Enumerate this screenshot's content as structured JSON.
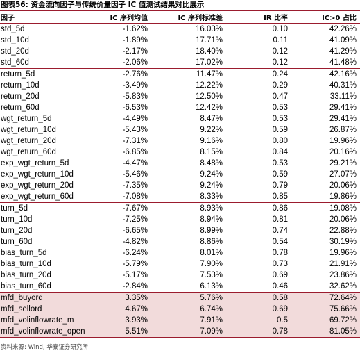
{
  "title": "图表56: 资金流向因子与传统价量因子 IC 值测试结果对比展示",
  "headers": [
    "因子",
    "IC 序列均值",
    "IC 序列标准差",
    "IR 比率",
    "IC>0 占比"
  ],
  "groups": [
    {
      "rows": [
        [
          "std_5d",
          "-1.62%",
          "16.03%",
          "0.10",
          "42.26%"
        ],
        [
          "std_10d",
          "-1.89%",
          "17.71%",
          "0.11",
          "41.09%"
        ],
        [
          "std_20d",
          "-2.17%",
          "18.40%",
          "0.12",
          "41.29%"
        ],
        [
          "std_60d",
          "-2.06%",
          "17.02%",
          "0.12",
          "41.48%"
        ]
      ]
    },
    {
      "rows": [
        [
          "return_5d",
          "-2.76%",
          "11.47%",
          "0.24",
          "42.16%"
        ],
        [
          "return_10d",
          "-3.49%",
          "12.22%",
          "0.29",
          "40.31%"
        ],
        [
          "return_20d",
          "-5.83%",
          "12.50%",
          "0.47",
          "33.11%"
        ],
        [
          "return_60d",
          "-6.53%",
          "12.42%",
          "0.53",
          "29.41%"
        ],
        [
          "wgt_return_5d",
          "-4.49%",
          "8.47%",
          "0.53",
          "29.41%"
        ],
        [
          "wgt_return_10d",
          "-5.43%",
          "9.22%",
          "0.59",
          "26.87%"
        ],
        [
          "wgt_return_20d",
          "-7.31%",
          "9.16%",
          "0.80",
          "19.96%"
        ],
        [
          "wgt_return_60d",
          "-6.85%",
          "8.15%",
          "0.84",
          "20.16%"
        ],
        [
          "exp_wgt_return_5d",
          "-4.47%",
          "8.48%",
          "0.53",
          "29.21%"
        ],
        [
          "exp_wgt_return_10d",
          "-5.46%",
          "9.24%",
          "0.59",
          "27.07%"
        ],
        [
          "exp_wgt_return_20d",
          "-7.35%",
          "9.24%",
          "0.79",
          "20.06%"
        ],
        [
          "exp_wgt_return_60d",
          "-7.08%",
          "8.33%",
          "0.85",
          "19.86%"
        ]
      ]
    },
    {
      "rows": [
        [
          "turn_5d",
          "-7.67%",
          "8.93%",
          "0.86",
          "19.08%"
        ],
        [
          "turn_10d",
          "-7.25%",
          "8.94%",
          "0.81",
          "20.06%"
        ],
        [
          "turn_20d",
          "-6.65%",
          "8.99%",
          "0.74",
          "22.88%"
        ],
        [
          "turn_60d",
          "-4.82%",
          "8.86%",
          "0.54",
          "30.19%"
        ],
        [
          "bias_turn_5d",
          "-6.24%",
          "8.01%",
          "0.78",
          "19.96%"
        ],
        [
          "bias_turn_10d",
          "-5.79%",
          "7.90%",
          "0.73",
          "21.91%"
        ],
        [
          "bias_turn_20d",
          "-5.17%",
          "7.53%",
          "0.69",
          "23.86%"
        ],
        [
          "bias_turn_60d",
          "-2.84%",
          "6.13%",
          "0.46",
          "32.62%"
        ]
      ]
    },
    {
      "highlight": true,
      "rows": [
        [
          "mfd_buyord",
          "3.35%",
          "5.76%",
          "0.58",
          "72.64%"
        ],
        [
          "mfd_sellord",
          "4.67%",
          "6.74%",
          "0.69",
          "75.66%"
        ],
        [
          "mfd_volinflowrate_m",
          "3.93%",
          "7.91%",
          "0.5",
          "69.72%"
        ],
        [
          "mfd_volinflowrate_open_m",
          "5.51%",
          "7.09%",
          "0.78",
          "81.05%"
        ]
      ]
    }
  ],
  "source": "资料来源: Wind, 华泰证券研究所",
  "colors": {
    "rule": "#9b1c2e",
    "highlight_bg": "#f2dbdb"
  }
}
